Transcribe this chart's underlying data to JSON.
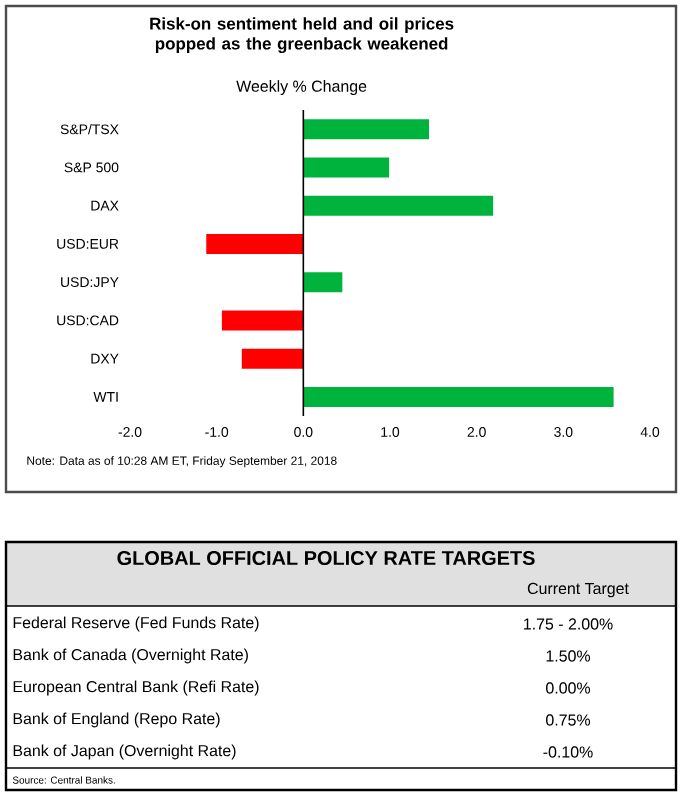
{
  "chart_data": [
    {
      "type": "bar",
      "orientation": "horizontal",
      "title": "Risk-on sentiment held and oil prices popped as the greenback weakened",
      "xlabel": "Weekly % Change",
      "categories": [
        "S&P/TSX",
        "S&P 500",
        "DAX",
        "USD:EUR",
        "USD:JPY",
        "USD:CAD",
        "DXY",
        "WTI"
      ],
      "values": [
        1.45,
        0.99,
        2.19,
        -1.12,
        0.45,
        -0.94,
        -0.71,
        3.58
      ],
      "colors": [
        "#00b33c",
        "#00b33c",
        "#00b33c",
        "#ff0000",
        "#00b33c",
        "#ff0000",
        "#ff0000",
        "#00b33c"
      ],
      "xlim": [
        -2,
        4
      ],
      "xticks": [
        {
          "value": -2,
          "label": "-2.0"
        },
        {
          "value": -1,
          "label": "-1.0"
        },
        {
          "value": 0,
          "label": "0.0"
        },
        {
          "value": 1,
          "label": "1.0"
        },
        {
          "value": 2,
          "label": "2.0"
        },
        {
          "value": 3,
          "label": "3.0"
        },
        {
          "value": 4,
          "label": "4.0"
        }
      ],
      "annotations": [
        "Note: Data as of  10:28 AM  ET,  Friday September 21, 2018"
      ]
    },
    {
      "type": "other",
      "title": "GLOBAL OFFICIAL POLICY RATE TARGETS",
      "subtitle": "Current Target",
      "categories": [
        "Federal Reserve (Fed Funds Rate)",
        "Bank of Canada (Overnight Rate)",
        "European Central Bank (Refi Rate)",
        "Bank of England (Repo Rate)",
        "Bank of Japan (Overnight Rate)"
      ],
      "value_labels": [
        "1.75 - 2.00%",
        "1.50%",
        "0.00%",
        "0.75%",
        "-0.10%"
      ],
      "annotations": [
        "Source: Central Banks."
      ]
    }
  ]
}
